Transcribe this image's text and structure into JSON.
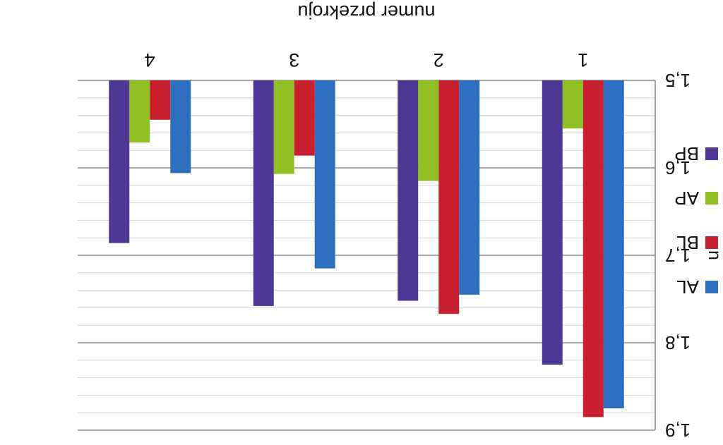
{
  "chart_data": {
    "type": "bar",
    "xlabel": "numer przekroju",
    "ylabel": "n",
    "categories": [
      "1",
      "2",
      "3",
      "4"
    ],
    "ylim": [
      1.5,
      1.9
    ],
    "y_ticks": [
      "1,5",
      "1,6",
      "1,7",
      "1,8",
      "1,9"
    ],
    "y_tick_values": [
      1.5,
      1.6,
      1.7,
      1.8,
      1.9
    ],
    "grid": true,
    "orientation": "rendered upside down (rotated 180°)",
    "legend_position": "right",
    "series": [
      {
        "name": "AL",
        "color": "#2e6ebe",
        "values": [
          1.875,
          1.745,
          1.715,
          1.606
        ]
      },
      {
        "name": "BL",
        "color": "#c8202e",
        "values": [
          1.885,
          1.767,
          1.586,
          1.545
        ]
      },
      {
        "name": "AP",
        "color": "#8fbf25",
        "values": [
          1.555,
          1.615,
          1.607,
          1.571
        ]
      },
      {
        "name": "BP",
        "color": "#4e3896",
        "values": [
          1.825,
          1.752,
          1.758,
          1.686
        ]
      }
    ]
  }
}
